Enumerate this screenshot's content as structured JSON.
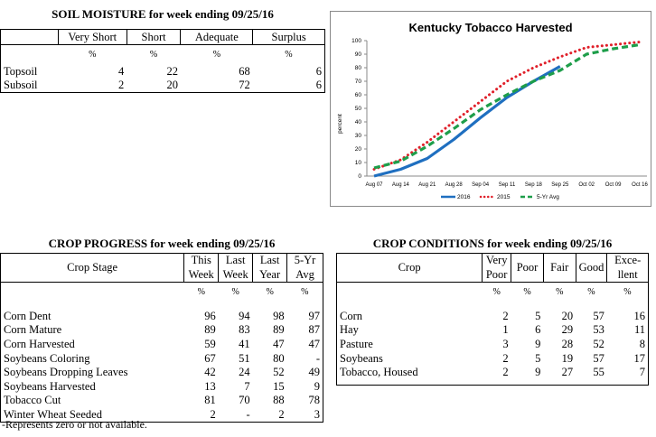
{
  "soil": {
    "title": "SOIL MOISTURE for week ending 09/25/16",
    "headers": [
      "Very Short",
      "Short",
      "Adequate",
      "Surplus"
    ],
    "units": [
      "%",
      "%",
      "%",
      "%"
    ],
    "rows": [
      {
        "label": "Topsoil",
        "values": [
          "4",
          "22",
          "68",
          "6"
        ]
      },
      {
        "label": "Subsoil",
        "values": [
          "2",
          "20",
          "72",
          "6"
        ]
      }
    ]
  },
  "progress": {
    "title": "CROP PROGRESS for week ending 09/25/16",
    "stage_header": "Crop Stage",
    "col_headers": [
      [
        "This",
        "Week"
      ],
      [
        "Last",
        "Week"
      ],
      [
        "Last",
        "Year"
      ],
      [
        "5-Yr",
        "Avg"
      ]
    ],
    "units": [
      "%",
      "%",
      "%",
      "%"
    ],
    "rows": [
      {
        "label": "Corn Dent",
        "values": [
          "96",
          "94",
          "98",
          "97"
        ]
      },
      {
        "label": "Corn Mature",
        "values": [
          "89",
          "83",
          "89",
          "87"
        ]
      },
      {
        "label": "Corn Harvested",
        "values": [
          "59",
          "41",
          "47",
          "47"
        ]
      },
      {
        "label": "Soybeans Coloring",
        "values": [
          "67",
          "51",
          "80",
          "-"
        ]
      },
      {
        "label": "Soybeans Dropping Leaves",
        "values": [
          "42",
          "24",
          "52",
          "49"
        ]
      },
      {
        "label": "Soybeans Harvested",
        "values": [
          "13",
          "7",
          "15",
          "9"
        ]
      },
      {
        "label": "Tobacco Cut",
        "values": [
          "81",
          "70",
          "88",
          "78"
        ]
      },
      {
        "label": "Winter Wheat Seeded",
        "values": [
          "2",
          "-",
          "2",
          "3"
        ]
      }
    ],
    "footnote": "-Represents zero or not available."
  },
  "conditions": {
    "title": "CROP CONDITIONS for week ending 09/25/16",
    "crop_header": "Crop",
    "col_headers": [
      [
        "Very",
        "Poor"
      ],
      [
        "Poor"
      ],
      [
        "Fair"
      ],
      [
        "Good"
      ],
      [
        "Exce-",
        "llent"
      ]
    ],
    "units": [
      "%",
      "%",
      "%",
      "%",
      "%"
    ],
    "rows": [
      {
        "label": "Corn",
        "values": [
          "2",
          "5",
          "20",
          "57",
          "16"
        ]
      },
      {
        "label": "Hay",
        "values": [
          "1",
          "6",
          "29",
          "53",
          "11"
        ]
      },
      {
        "label": "Pasture",
        "values": [
          "3",
          "9",
          "28",
          "52",
          "8"
        ]
      },
      {
        "label": "Soybeans",
        "values": [
          "2",
          "5",
          "19",
          "57",
          "17"
        ]
      },
      {
        "label": "Tobacco, Housed",
        "values": [
          "2",
          "9",
          "27",
          "55",
          "7"
        ]
      }
    ]
  },
  "chart_data": {
    "type": "line",
    "title": "Kentucky Tobacco Harvested",
    "ylabel": "percent",
    "xlabel": "",
    "ylim": [
      0,
      100
    ],
    "yticks": [
      0,
      10,
      20,
      30,
      40,
      50,
      60,
      70,
      80,
      90,
      100
    ],
    "categories": [
      "Aug 07",
      "Aug 14",
      "Aug 21",
      "Aug 28",
      "Sep 04",
      "Sep 11",
      "Sep 18",
      "Sep 25",
      "Oct 02",
      "Oct 09",
      "Oct 16"
    ],
    "legend_position": "bottom",
    "grid": false,
    "series": [
      {
        "name": "2016",
        "color": "#1f6fc0",
        "style": "solid",
        "values": [
          0,
          5,
          13,
          27,
          43,
          58,
          70,
          81,
          null,
          null,
          null
        ]
      },
      {
        "name": "2015",
        "color": "#e0202a",
        "style": "dotted",
        "values": [
          5,
          12,
          25,
          40,
          55,
          70,
          80,
          88,
          95,
          97,
          99
        ]
      },
      {
        "name": "5-Yr Avg",
        "color": "#1e9e4a",
        "style": "dashed",
        "values": [
          6,
          11,
          22,
          35,
          49,
          60,
          70,
          78,
          90,
          94,
          97
        ]
      }
    ]
  }
}
